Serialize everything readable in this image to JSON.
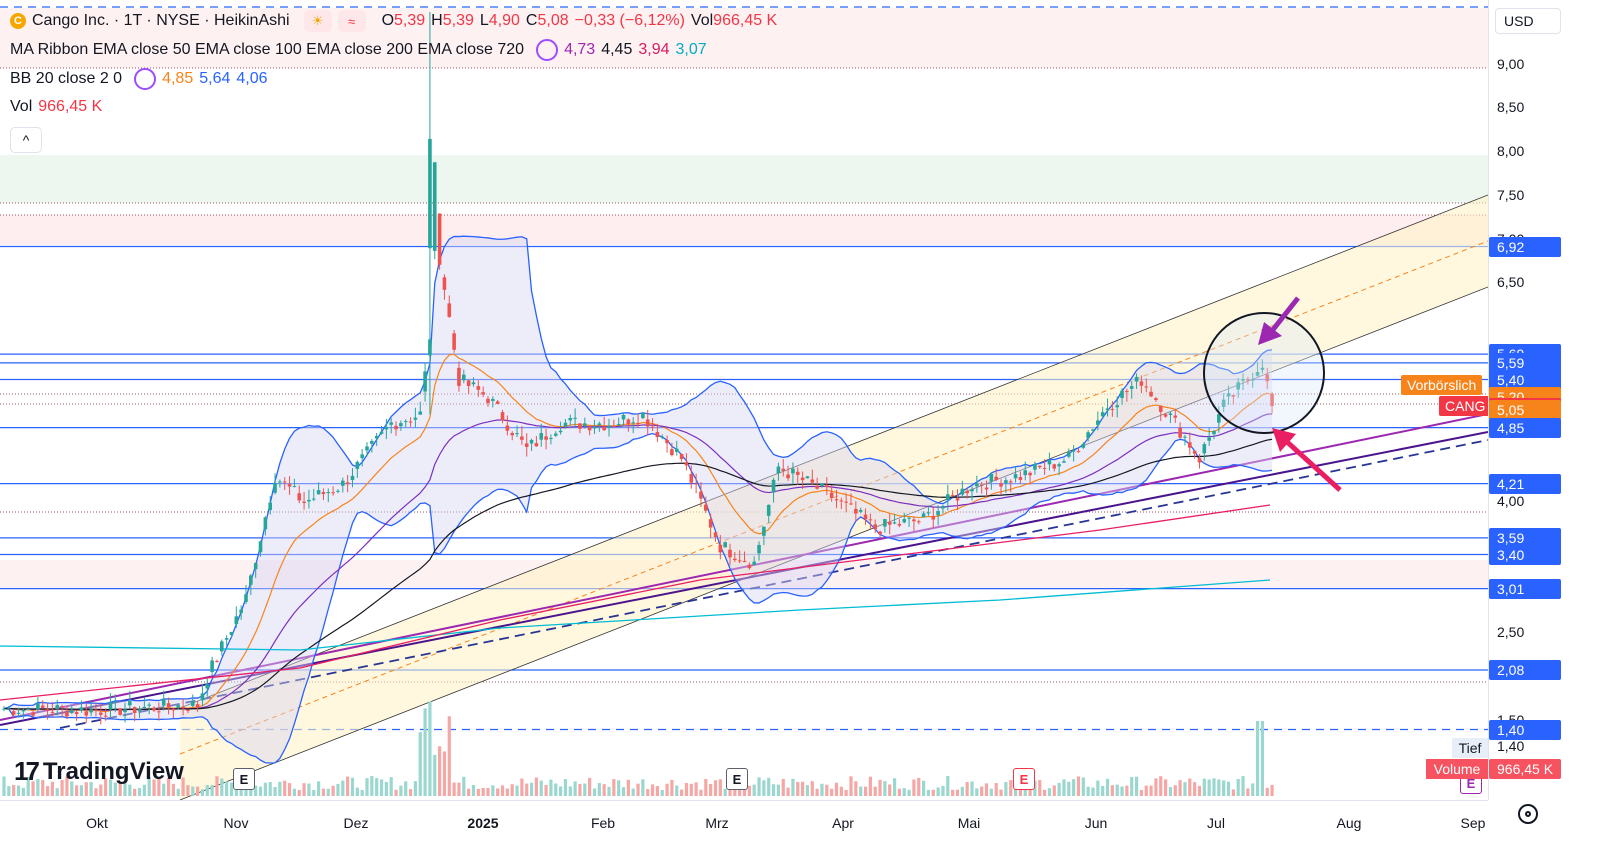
{
  "header": {
    "symbol_icon": "C",
    "symbol_title": "Cango Inc. · 1T · NYSE · HeikinAshi",
    "ohlc": {
      "o_label": "O",
      "o": "5,39",
      "h_label": "H",
      "h": "5,39",
      "l_label": "L",
      "l": "4,90",
      "c_label": "C",
      "c": "5,08",
      "change": "−0,33 (−6,12%)",
      "vol_label": "Vol",
      "vol": "966,45 K"
    },
    "ribbon": {
      "label": "MA Ribbon EMA close 50 EMA close 100 EMA close 200 EMA close 720",
      "v1": "4,73",
      "v2": "4,45",
      "v3": "3,94",
      "v4": "3,07"
    },
    "bb": {
      "label": "BB 20 close 2 0",
      "v1": "4,85",
      "v2": "5,64",
      "v3": "4,06"
    },
    "vol": {
      "label": "Vol",
      "value": "966,45 K"
    },
    "collapse_glyph": "^"
  },
  "logo": {
    "text": "TradingView",
    "mark": "17"
  },
  "price_axis": {
    "currency": "USD",
    "labels": [
      {
        "text": "9,00",
        "price": 9.0
      },
      {
        "text": "8,50",
        "price": 8.5
      },
      {
        "text": "8,00",
        "price": 8.0
      },
      {
        "text": "7,50",
        "price": 7.5
      },
      {
        "text": "7,00",
        "price": 7.0
      },
      {
        "text": "6,50",
        "price": 6.5
      },
      {
        "text": "4,00",
        "price": 4.0
      },
      {
        "text": "2,50",
        "price": 2.5
      },
      {
        "text": "1,50",
        "price": 1.5
      }
    ],
    "badges": [
      {
        "text": "6,92",
        "price": 6.92,
        "color": "#2962ff"
      },
      {
        "text": "5,69",
        "price": 5.69,
        "color": "#2962ff"
      },
      {
        "text": "5,59",
        "price": 5.59,
        "color": "#2962ff"
      },
      {
        "text": "5,40",
        "price": 5.4,
        "color": "#2962ff"
      },
      {
        "text": "5,20",
        "price": 5.2,
        "color": "#f7841b"
      },
      {
        "text": "5,08",
        "price": 5.08,
        "color": "#f23645"
      },
      {
        "text": "5,05",
        "price": 5.05,
        "color": "#f7841b"
      },
      {
        "text": "4,85",
        "price": 4.85,
        "color": "#2962ff"
      },
      {
        "text": "4,21",
        "price": 4.21,
        "color": "#2962ff"
      },
      {
        "text": "3,59",
        "price": 3.59,
        "color": "#2962ff"
      },
      {
        "text": "3,40",
        "price": 3.4,
        "color": "#2962ff"
      },
      {
        "text": "3,01",
        "price": 3.01,
        "color": "#2962ff"
      },
      {
        "text": "2,08",
        "price": 2.08,
        "color": "#2962ff"
      },
      {
        "text": "1,40",
        "price": 1.4,
        "color": "#2962ff"
      }
    ],
    "side_tags": {
      "premarket": "Vorbörslich",
      "symbol": "CANG",
      "low_label": "Tief",
      "low_value": "1,40",
      "volume_label": "Volume",
      "volume_value": "966,45 K"
    }
  },
  "time_axis": [
    {
      "text": "Okt",
      "bold": false
    },
    {
      "text": "Nov",
      "bold": false
    },
    {
      "text": "Dez",
      "bold": false
    },
    {
      "text": "2025",
      "bold": true
    },
    {
      "text": "Feb",
      "bold": false
    },
    {
      "text": "Mrz",
      "bold": false
    },
    {
      "text": "Apr",
      "bold": false
    },
    {
      "text": "Mai",
      "bold": false
    },
    {
      "text": "Jun",
      "bold": false
    },
    {
      "text": "Jul",
      "bold": false
    },
    {
      "text": "Aug",
      "bold": false
    },
    {
      "text": "Sep",
      "bold": false
    }
  ],
  "earnings_markers": [
    {
      "text": "E",
      "type": "past"
    },
    {
      "text": "E",
      "type": "past"
    },
    {
      "text": "E",
      "type": "reported"
    },
    {
      "text": "E",
      "type": "upcoming"
    }
  ],
  "colors": {
    "up": "#26a69a",
    "down": "#ef5350",
    "bb": "#2962ff",
    "ema50": "#f7841b",
    "ema100": "#7b2fbe",
    "ema200": "#131722",
    "ema720": "#00bcd4",
    "accent": "#2962ff",
    "purple_line": "#6a1b9a",
    "annotation_purple": "#9c27b0",
    "annotation_pink": "#e91e63"
  }
}
